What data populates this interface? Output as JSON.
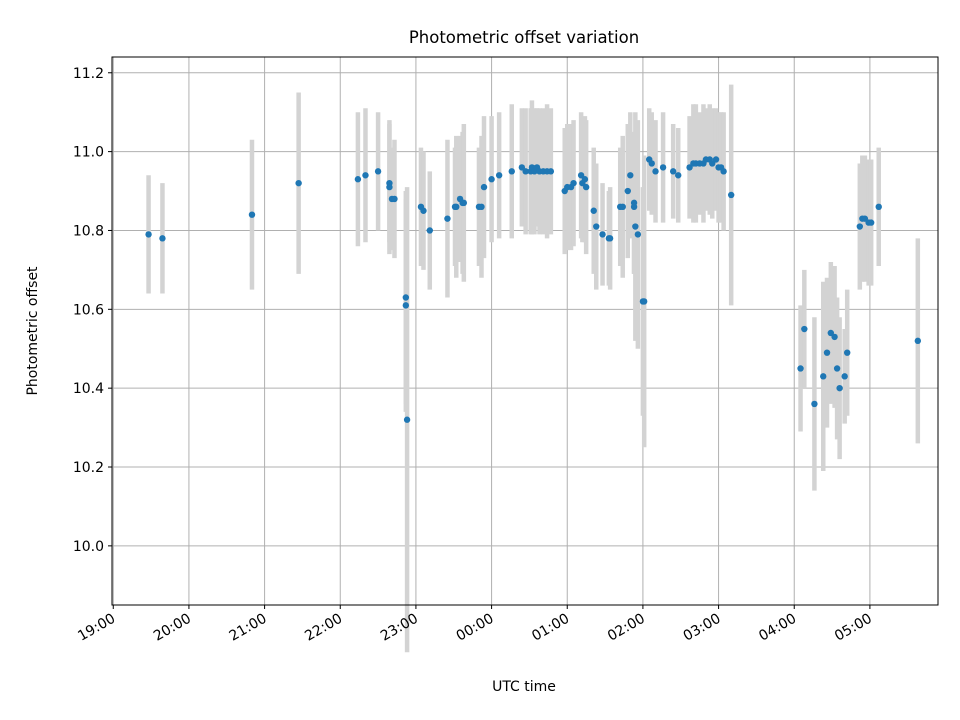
{
  "chart_data": {
    "type": "scatter",
    "title": "Photometric offset variation",
    "xlabel": "UTC time",
    "ylabel": "Photometric offset",
    "xlim": [
      "18:59",
      "05:54"
    ],
    "ylim": [
      9.85,
      11.24
    ],
    "x_ticks": [
      "19:00",
      "20:00",
      "21:00",
      "22:00",
      "23:00",
      "00:00",
      "01:00",
      "02:00",
      "03:00",
      "04:00",
      "05:00"
    ],
    "y_ticks": [
      "10.0",
      "10.2",
      "10.4",
      "10.6",
      "10.8",
      "11.0",
      "11.2"
    ],
    "grid": true,
    "colors": {
      "point": "#1f77b4",
      "errorbar": "#d3d3d3",
      "grid": "#b0b0b0"
    },
    "series": [
      {
        "x": [
          "19:28",
          "19:39",
          "20:50",
          "21:27",
          "22:14",
          "22:20",
          "22:30",
          "22:39",
          "22:39",
          "22:41",
          "22:43",
          "22:52",
          "22:52",
          "22:53",
          "23:04",
          "23:06",
          "23:11",
          "23:25",
          "23:31",
          "23:32",
          "23:35",
          "23:37",
          "23:38",
          "23:50",
          "23:52",
          "23:54",
          "24:00",
          "24:06",
          "24:16",
          "24:24",
          "24:27",
          "24:31",
          "24:32",
          "24:34",
          "24:36",
          "24:38",
          "24:41",
          "24:44",
          "24:47",
          "24:58",
          "25:00",
          "25:03",
          "25:05",
          "25:11",
          "25:12",
          "25:14",
          "25:15",
          "25:21",
          "25:23",
          "25:28",
          "25:33",
          "25:34",
          "25:42",
          "25:44",
          "25:48",
          "25:50",
          "25:53",
          "25:53",
          "25:54",
          "25:56",
          "26:00",
          "26:01",
          "26:05",
          "26:07",
          "26:10",
          "26:16",
          "26:24",
          "26:28",
          "26:37",
          "26:40",
          "26:42",
          "26:45",
          "26:48",
          "26:50",
          "26:53",
          "26:55",
          "26:58",
          "27:00",
          "27:02",
          "27:04",
          "27:10",
          "28:05",
          "28:08",
          "28:16",
          "28:23",
          "28:26",
          "28:29",
          "28:32",
          "28:34",
          "28:36",
          "28:40",
          "28:42",
          "28:52",
          "28:54",
          "28:56",
          "28:59",
          "29:01",
          "29:07"
        ],
        "y": [
          10.79,
          10.78,
          10.84,
          10.92,
          10.93,
          10.94,
          10.95,
          10.92,
          10.91,
          10.88,
          10.88,
          10.63,
          10.61,
          10.32,
          10.86,
          10.85,
          10.8,
          10.83,
          10.86,
          10.86,
          10.88,
          10.87,
          10.87,
          10.86,
          10.86,
          10.91,
          10.93,
          10.94,
          10.95,
          10.96,
          10.95,
          10.95,
          10.96,
          10.95,
          10.96,
          10.95,
          10.95,
          10.95,
          10.95,
          10.9,
          10.91,
          10.91,
          10.92,
          10.94,
          10.92,
          10.93,
          10.91,
          10.85,
          10.81,
          10.79,
          10.78,
          10.78,
          10.86,
          10.86,
          10.9,
          10.94,
          10.87,
          10.86,
          10.81,
          10.79,
          10.62,
          10.62,
          10.98,
          10.97,
          10.95,
          10.96,
          10.95,
          10.94,
          10.96,
          10.97,
          10.97,
          10.97,
          10.97,
          10.98,
          10.98,
          10.97,
          10.98,
          10.96,
          10.96,
          10.95,
          10.89,
          10.45,
          10.55,
          10.36,
          10.43,
          10.49,
          10.54,
          10.53,
          10.45,
          10.4,
          10.43,
          10.49,
          10.81,
          10.83,
          10.83,
          10.82,
          10.82,
          10.86
        ],
        "err": [
          0.15,
          0.14,
          0.19,
          0.23,
          0.17,
          0.17,
          0.15,
          0.15,
          0.17,
          0.13,
          0.15,
          0.27,
          0.27,
          0.59,
          0.15,
          0.15,
          0.15,
          0.2,
          0.15,
          0.18,
          0.16,
          0.18,
          0.2,
          0.15,
          0.18,
          0.18,
          0.16,
          0.16,
          0.17,
          0.15,
          0.16,
          0.16,
          0.17,
          0.16,
          0.15,
          0.16,
          0.16,
          0.17,
          0.16,
          0.16,
          0.16,
          0.16,
          0.16,
          0.16,
          0.15,
          0.16,
          0.17,
          0.16,
          0.16,
          0.13,
          0.12,
          0.13,
          0.15,
          0.18,
          0.17,
          0.16,
          0.18,
          0.17,
          0.29,
          0.29,
          0.29,
          0.37,
          0.13,
          0.13,
          0.13,
          0.14,
          0.12,
          0.12,
          0.13,
          0.15,
          0.15,
          0.13,
          0.15,
          0.13,
          0.14,
          0.14,
          0.13,
          0.14,
          0.14,
          0.15,
          0.28,
          0.16,
          0.15,
          0.22,
          0.24,
          0.19,
          0.18,
          0.18,
          0.18,
          0.18,
          0.12,
          0.16,
          0.16,
          0.16,
          0.16,
          0.16,
          0.16,
          0.15
        ]
      },
      {
        "x": [
          "29:38"
        ],
        "y": [
          10.52
        ],
        "err": [
          0.26
        ]
      }
    ]
  }
}
